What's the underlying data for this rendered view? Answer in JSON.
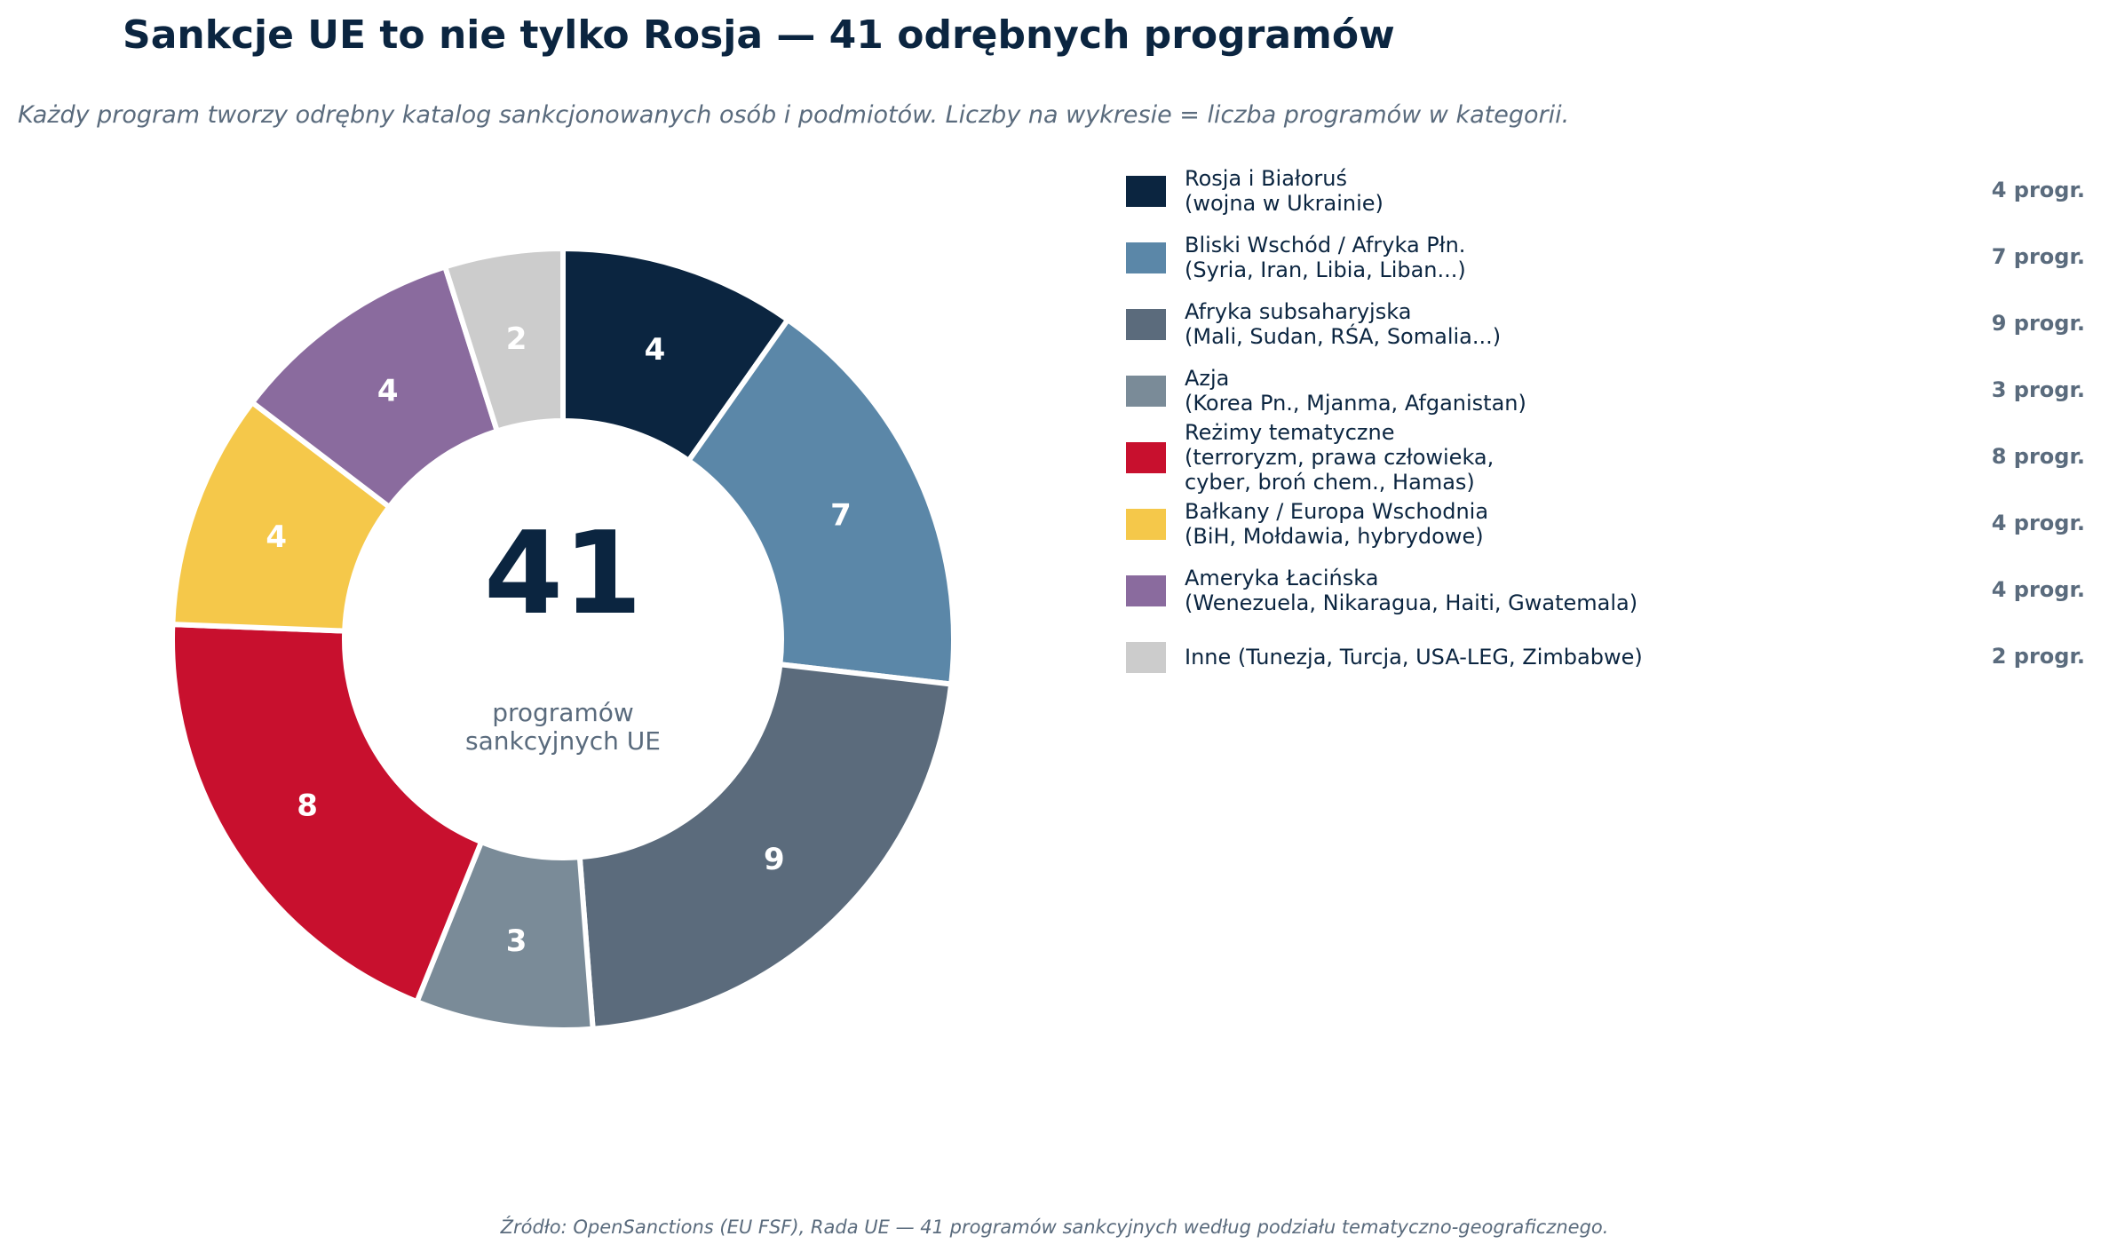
{
  "chart_data": {
    "type": "pie",
    "variant": "donut",
    "title": "Sankcje UE to nie tylko Rosja — 41 odrębnych programów",
    "subtitle": "Każdy program tworzy odrębny katalog sankcjonowanych osób i podmiotów. Liczby na wykresie = liczba programów w kategorii.",
    "center_value": "41",
    "center_label": "programów\nsankcyjnych UE",
    "legend_placement": "right",
    "count_suffix": "progr.",
    "slices": [
      {
        "label": "Rosja i Białoruś\n(wojna w Ukrainie)",
        "value": 4,
        "color": "#0b2540"
      },
      {
        "label": "Bliski Wschód / Afryka Płn.\n(Syria, Iran, Libia, Liban...)",
        "value": 7,
        "color": "#5b87a8"
      },
      {
        "label": "Afryka subsaharyjska\n(Mali, Sudan, RŚA, Somalia...)",
        "value": 9,
        "color": "#5b6b7c"
      },
      {
        "label": "Azja\n(Korea Pn., Mjanma, Afganistan)",
        "value": 3,
        "color": "#7a8b98"
      },
      {
        "label": "Reżimy tematyczne\n(terroryzm, prawa człowieka,\ncyber, broń chem., Hamas)",
        "value": 8,
        "color": "#c8102e"
      },
      {
        "label": "Bałkany / Europa Wschodnia\n(BiH, Mołdawia, hybrydowe)",
        "value": 4,
        "color": "#f5c84a"
      },
      {
        "label": "Ameryka Łacińska\n(Wenezuela, Nikaragua, Haiti, Gwatemala)",
        "value": 4,
        "color": "#8a6b9e"
      },
      {
        "label": "Inne (Tunezja, Turcja, USA-LEG, Zimbabwe)",
        "value": 2,
        "color": "#cccccc"
      }
    ],
    "source": "Źródło: OpenSanctions (EU FSF), Rada UE — 41 programów sankcyjnych według podziału tematyczno-geograficznego."
  }
}
